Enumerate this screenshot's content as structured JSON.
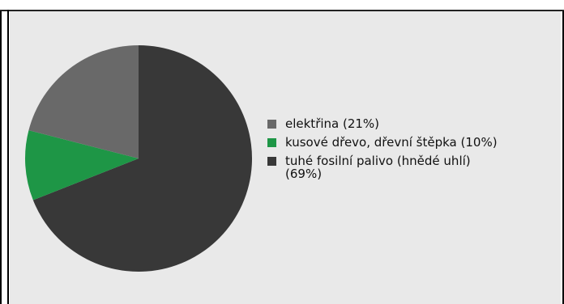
{
  "header": {
    "title": ""
  },
  "chart_data": {
    "type": "pie",
    "title": "",
    "categories": [
      "elektřina (21%)",
      "kusové dřevo, dřevní štěpka (10%)",
      "tuhé fosilní palivo (hnědé uhlí) (69%)"
    ],
    "values": [
      21,
      10,
      69
    ],
    "colors": [
      "#696969",
      "#1e9646",
      "#383838"
    ],
    "legend_position": "right"
  }
}
